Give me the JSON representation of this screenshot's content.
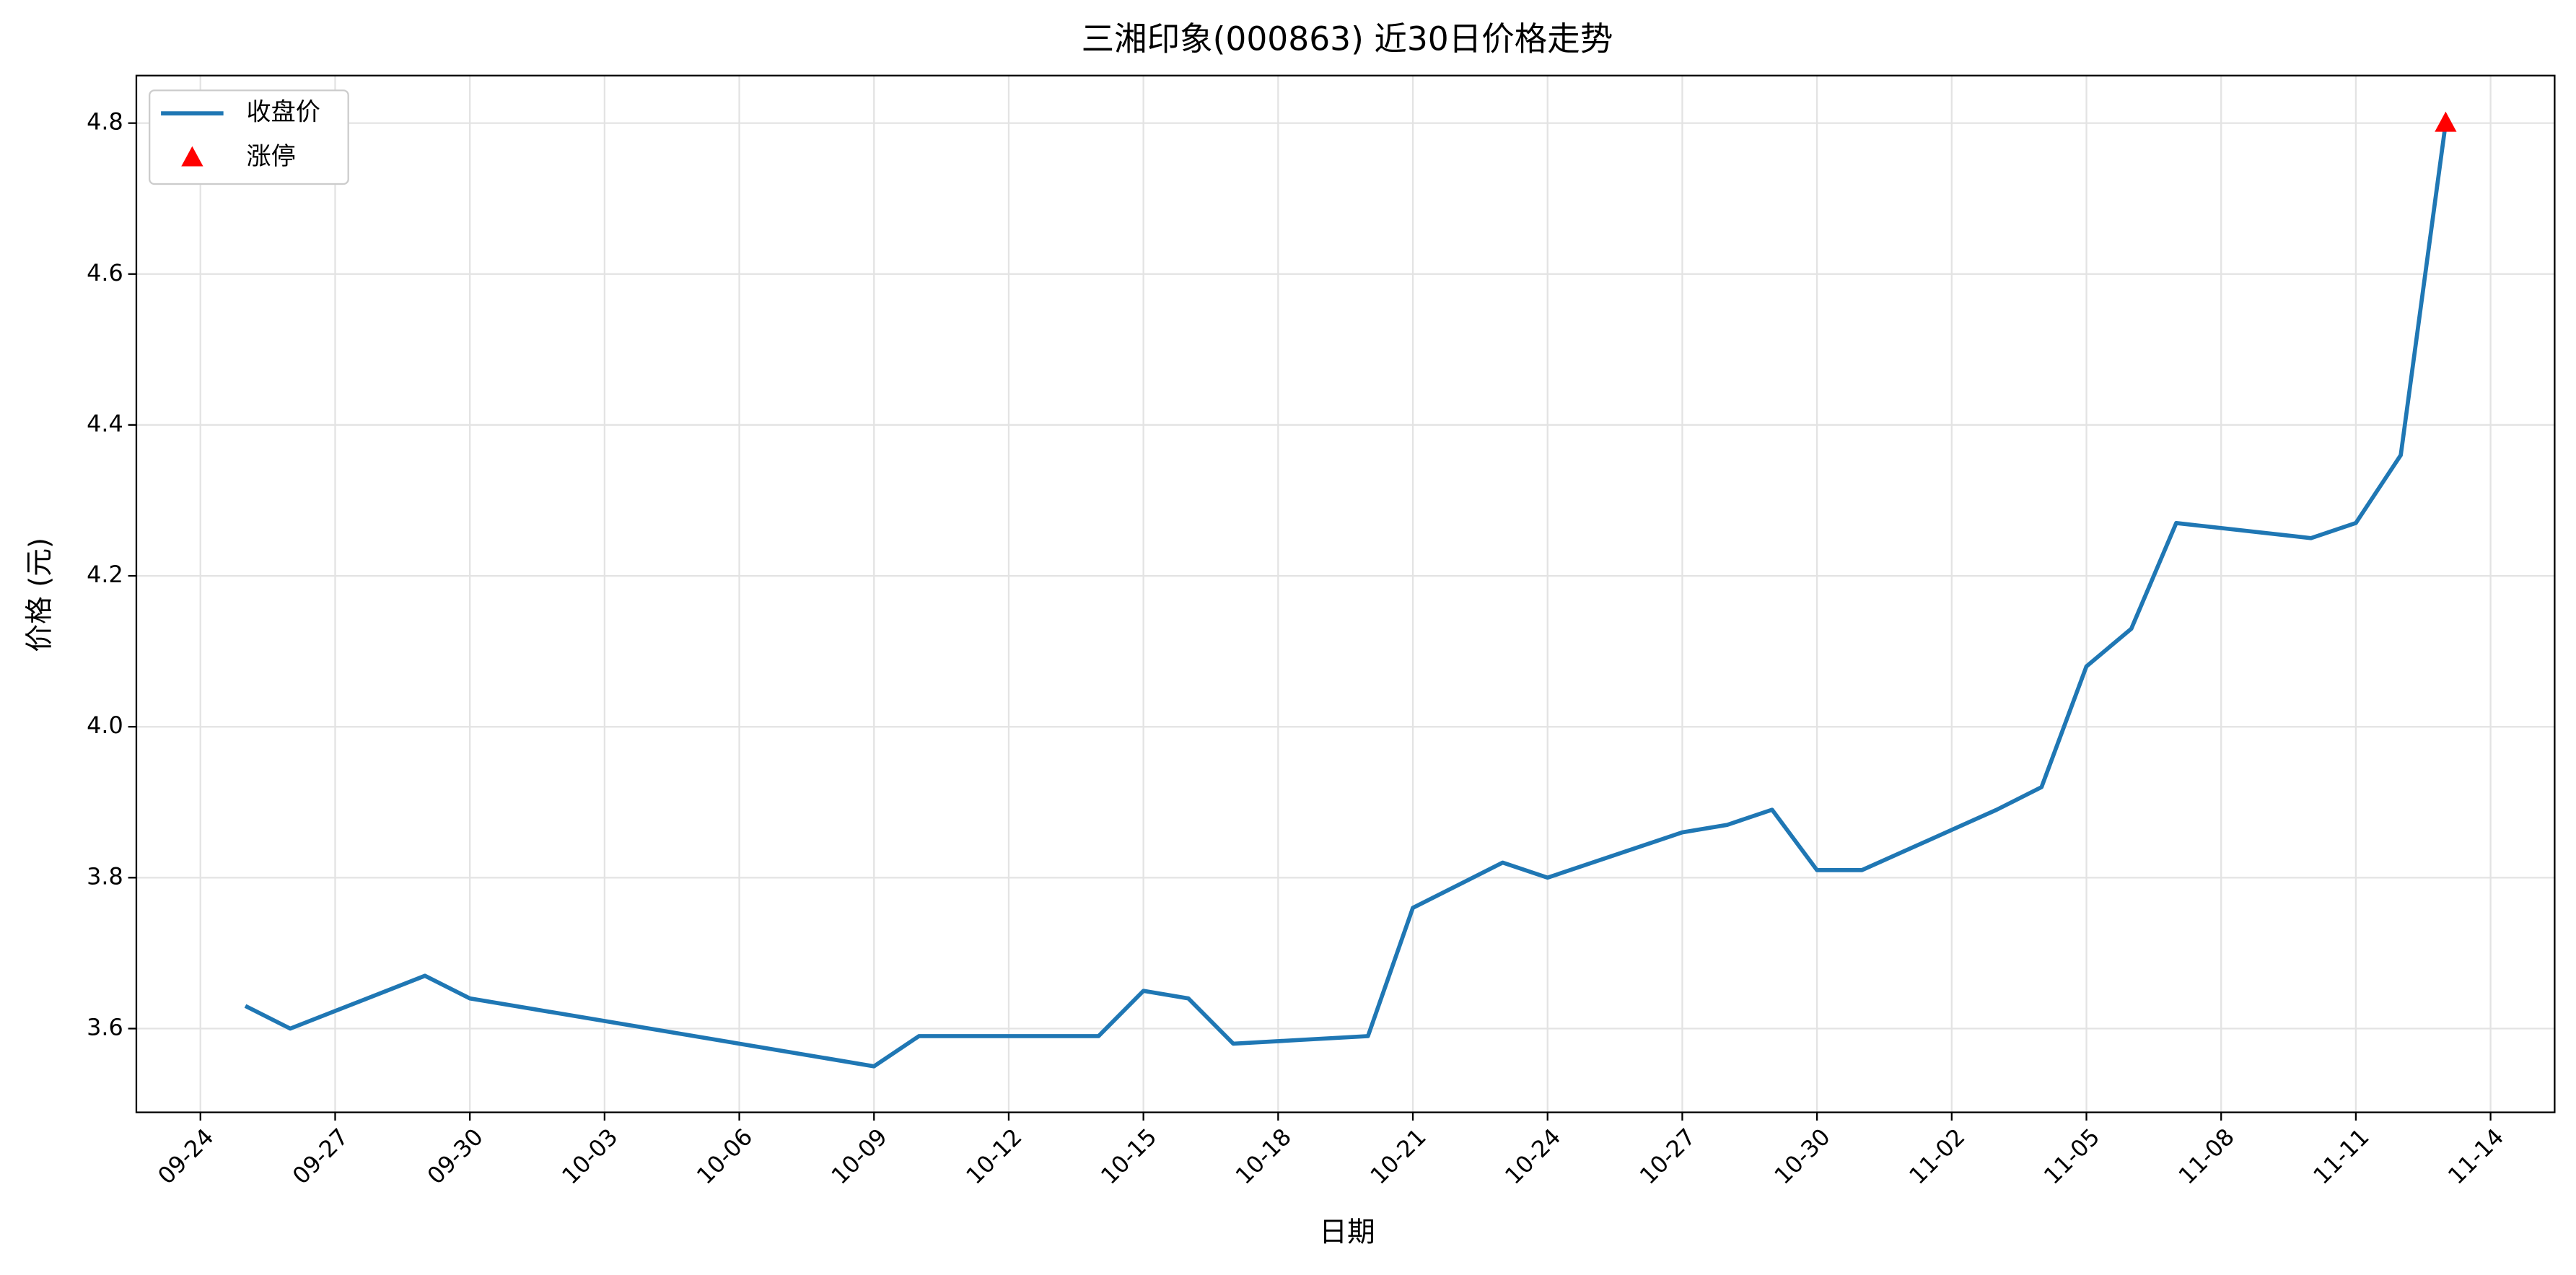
{
  "chart_data": {
    "type": "line",
    "title": "三湘印象(000863) 近30日价格走势",
    "xlabel": "日期",
    "ylabel": "价格 (元)",
    "x": [
      "09-25",
      "09-26",
      "09-29",
      "09-30",
      "10-09",
      "10-10",
      "10-14",
      "10-15",
      "10-16",
      "10-17",
      "10-20",
      "10-21",
      "10-23",
      "10-24",
      "10-27",
      "10-28",
      "10-29",
      "10-30",
      "10-31",
      "11-03",
      "11-04",
      "11-05",
      "11-06",
      "11-07",
      "11-10",
      "11-11",
      "11-12",
      "11-13"
    ],
    "series": [
      {
        "name": "收盘价",
        "color": "#1f77b4",
        "type": "line",
        "values": [
          3.63,
          3.6,
          3.67,
          3.64,
          3.55,
          3.59,
          3.59,
          3.65,
          3.64,
          3.58,
          3.59,
          3.76,
          3.82,
          3.8,
          3.86,
          3.87,
          3.89,
          3.81,
          3.81,
          3.89,
          3.92,
          4.08,
          4.13,
          4.27,
          4.25,
          4.27,
          4.36,
          4.8
        ]
      },
      {
        "name": "涨停",
        "color": "#ff0000",
        "type": "scatter",
        "marker": "triangle",
        "x": [
          "11-13"
        ],
        "values": [
          4.8
        ]
      }
    ],
    "xlim": [
      "09-24",
      "11-14"
    ],
    "xticks": [
      "09-24",
      "09-27",
      "09-30",
      "10-03",
      "10-06",
      "10-09",
      "10-12",
      "10-15",
      "10-18",
      "10-21",
      "10-24",
      "10-27",
      "10-30",
      "11-02",
      "11-05",
      "11-08",
      "11-11",
      "11-14"
    ],
    "ylim": [
      3.489,
      4.863
    ],
    "yticks": [
      3.6,
      3.8,
      {
        "value": 4,
        "label": "4.0"
      },
      4.2,
      4.4,
      4.6,
      4.8
    ],
    "grid": true,
    "legend": "upper left"
  }
}
